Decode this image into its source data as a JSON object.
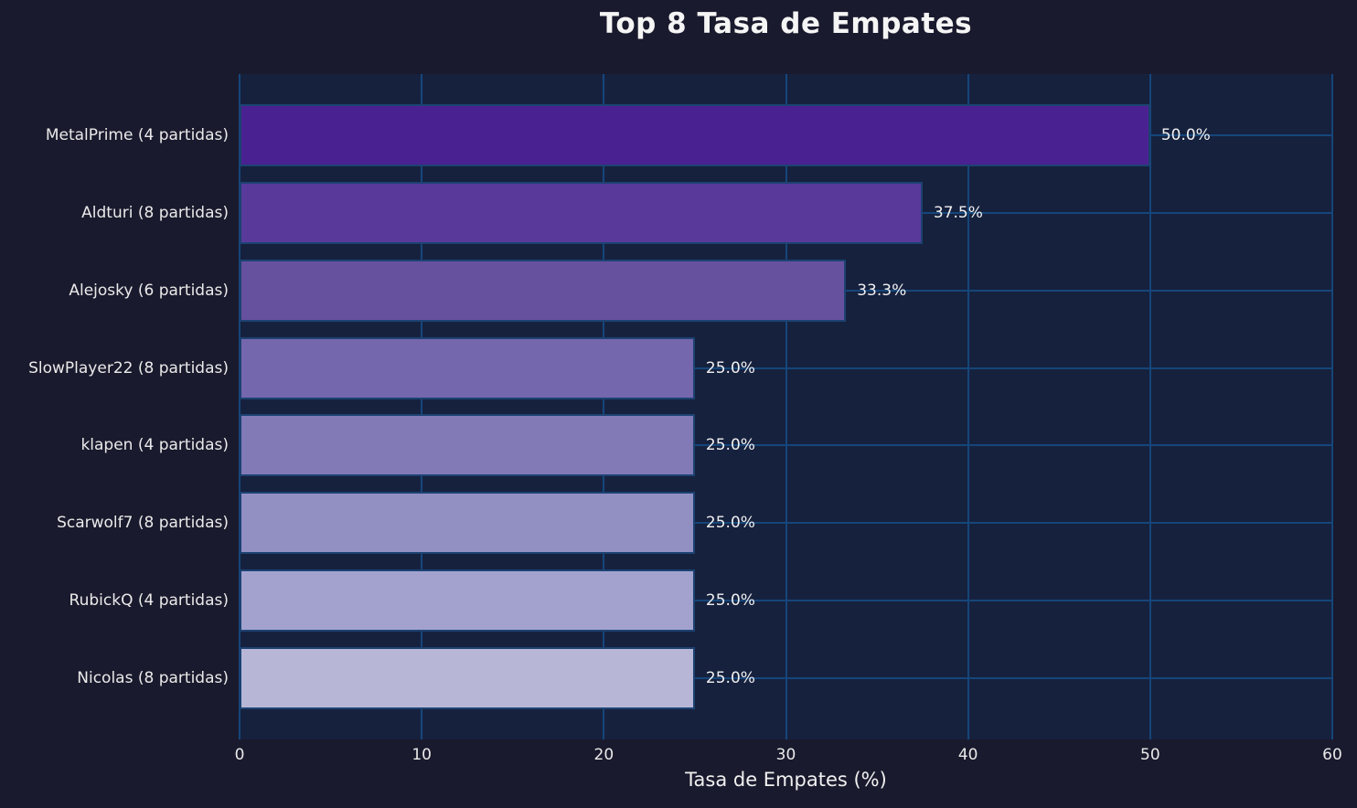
{
  "figure": {
    "title": "Top 8 Tasa de Empates"
  },
  "colors": {
    "background": "#1a1a2e",
    "plot_background": "#16213e",
    "grid": "#15467a",
    "bar_edge": "#1c4272",
    "text": "#f0f0f0"
  },
  "chart_data": {
    "type": "bar",
    "orientation": "horizontal",
    "title": "Top 8 Tasa de Empates",
    "xlabel": "Tasa de Empates (%)",
    "ylabel": "",
    "xlim": [
      0,
      60
    ],
    "xticks": [
      "0",
      "10",
      "20",
      "30",
      "40",
      "50",
      "60"
    ],
    "xtick_values": [
      0,
      10,
      20,
      30,
      40,
      50,
      60
    ],
    "grid": true,
    "legend": false,
    "categories": [
      "MetalPrime (4 partidas)",
      "Aldturi (8 partidas)",
      "Alejosky (6 partidas)",
      "SlowPlayer22 (8 partidas)",
      "klapen (4 partidas)",
      "Scarwolf7 (8 partidas)",
      "RubickQ (4 partidas)",
      "Nicolas (8 partidas)"
    ],
    "values": [
      50.0,
      37.5,
      33.3,
      25.0,
      25.0,
      25.0,
      25.0,
      25.0
    ],
    "value_labels": [
      "50.0%",
      "37.5%",
      "33.3%",
      "25.0%",
      "25.0%",
      "25.0%",
      "25.0%",
      "25.0%"
    ],
    "bar_colors": [
      "#4a2190",
      "#593a9b",
      "#66519f",
      "#7567ad",
      "#8279b7",
      "#9290c3",
      "#a3a2ce",
      "#b7b6d7"
    ]
  }
}
